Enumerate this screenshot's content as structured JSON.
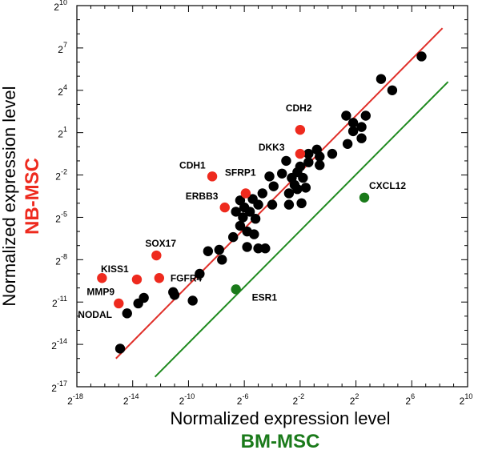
{
  "chart_data": {
    "type": "scatter",
    "xlabel": "Normalized expression level",
    "ylabel": "Normalized expression level",
    "x_group_label": "BM-MSC",
    "y_group_label": "NB-MSC",
    "scale": "log2",
    "xlim": [
      -18,
      10
    ],
    "ylim": [
      -17,
      10
    ],
    "x_ticks": [
      -18,
      -14,
      -10,
      -6,
      -2,
      2,
      6,
      10
    ],
    "y_ticks": [
      -17,
      -14,
      -11,
      -8,
      -5,
      -2,
      1,
      4,
      7,
      10
    ],
    "tick_base": "2",
    "grid": false,
    "colors": {
      "upregulated": "#ee2a1e",
      "downregulated": "#1a7a1a",
      "unchanged": "#000000",
      "upper_line": "#e0302a",
      "lower_line": "#1f8a1f"
    },
    "fold_lines": [
      {
        "name": "upper",
        "x": [
          -15.2,
          8.2
        ],
        "y": [
          -15.0,
          8.4
        ]
      },
      {
        "name": "lower",
        "x": [
          -12.4,
          8.6
        ],
        "y": [
          -16.3,
          4.6
        ]
      }
    ],
    "labeled_points": [
      {
        "label": "CDH2",
        "x": -2.0,
        "y": 1.2,
        "group": "upregulated"
      },
      {
        "label": "DKK3",
        "x": -2.0,
        "y": -0.5,
        "group": "upregulated"
      },
      {
        "label": "CDH1",
        "x": -8.3,
        "y": -2.1,
        "group": "upregulated"
      },
      {
        "label": "SFRP1",
        "x": -5.9,
        "y": -3.3,
        "group": "upregulated"
      },
      {
        "label": "ERBB3",
        "x": -7.4,
        "y": -4.3,
        "group": "upregulated"
      },
      {
        "label": "SOX17",
        "x": -12.3,
        "y": -7.7,
        "group": "upregulated"
      },
      {
        "label": "KISS1",
        "x": -13.7,
        "y": -9.4,
        "group": "upregulated"
      },
      {
        "label": "FGFR4",
        "x": -12.1,
        "y": -9.3,
        "group": "upregulated"
      },
      {
        "label": "MMP9",
        "x": -16.2,
        "y": -9.3,
        "group": "upregulated"
      },
      {
        "label": "NODAL",
        "x": -15.0,
        "y": -11.1,
        "group": "upregulated"
      },
      {
        "label": "CXCL12",
        "x": 2.6,
        "y": -3.6,
        "group": "downregulated"
      },
      {
        "label": "ESR1",
        "x": -6.6,
        "y": -10.1,
        "group": "downregulated"
      }
    ],
    "unlabeled_points": [
      [
        6.7,
        6.4
      ],
      [
        4.6,
        4.0
      ],
      [
        3.8,
        4.8
      ],
      [
        1.8,
        1.7
      ],
      [
        1.3,
        2.2
      ],
      [
        2.7,
        2.2
      ],
      [
        2.4,
        1.4
      ],
      [
        1.8,
        1.1
      ],
      [
        2.4,
        0.6
      ],
      [
        1.4,
        0.2
      ],
      [
        0.3,
        -0.5
      ],
      [
        -1.4,
        -0.5
      ],
      [
        -0.8,
        -0.2
      ],
      [
        -0.6,
        -0.7
      ],
      [
        -1.4,
        -1.1
      ],
      [
        -0.6,
        -1.3
      ],
      [
        -2.0,
        -1.4
      ],
      [
        -3.0,
        -1.0
      ],
      [
        -2.2,
        -1.8
      ],
      [
        -3.3,
        -1.9
      ],
      [
        -2.6,
        -2.2
      ],
      [
        -1.8,
        -2.2
      ],
      [
        -2.4,
        -2.7
      ],
      [
        -2.8,
        -3.3
      ],
      [
        -2.2,
        -3.0
      ],
      [
        -1.6,
        -2.9
      ],
      [
        -4.2,
        -2.1
      ],
      [
        -3.9,
        -2.8
      ],
      [
        -4.7,
        -3.3
      ],
      [
        -4.0,
        -4.1
      ],
      [
        -1.9,
        -4.0
      ],
      [
        -2.8,
        -4.1
      ],
      [
        -5.4,
        -3.7
      ],
      [
        -6.3,
        -3.8
      ],
      [
        -5.0,
        -4.1
      ],
      [
        -6.0,
        -4.3
      ],
      [
        -5.6,
        -4.6
      ],
      [
        -6.6,
        -4.6
      ],
      [
        -6.1,
        -5.0
      ],
      [
        -5.2,
        -5.1
      ],
      [
        -6.3,
        -5.6
      ],
      [
        -5.8,
        -6.0
      ],
      [
        -5.3,
        -6.2
      ],
      [
        -6.8,
        -6.4
      ],
      [
        -5.8,
        -7.1
      ],
      [
        -5.0,
        -7.2
      ],
      [
        -4.5,
        -7.2
      ],
      [
        -7.8,
        -7.3
      ],
      [
        -8.6,
        -7.4
      ],
      [
        -7.6,
        -8.0
      ],
      [
        -9.2,
        -9.0
      ],
      [
        -11.1,
        -10.3
      ],
      [
        -11.0,
        -10.5
      ],
      [
        -13.2,
        -10.7
      ],
      [
        -13.6,
        -11.1
      ],
      [
        -14.4,
        -11.8
      ],
      [
        -9.7,
        -10.9
      ],
      [
        -14.9,
        -14.3
      ]
    ]
  }
}
